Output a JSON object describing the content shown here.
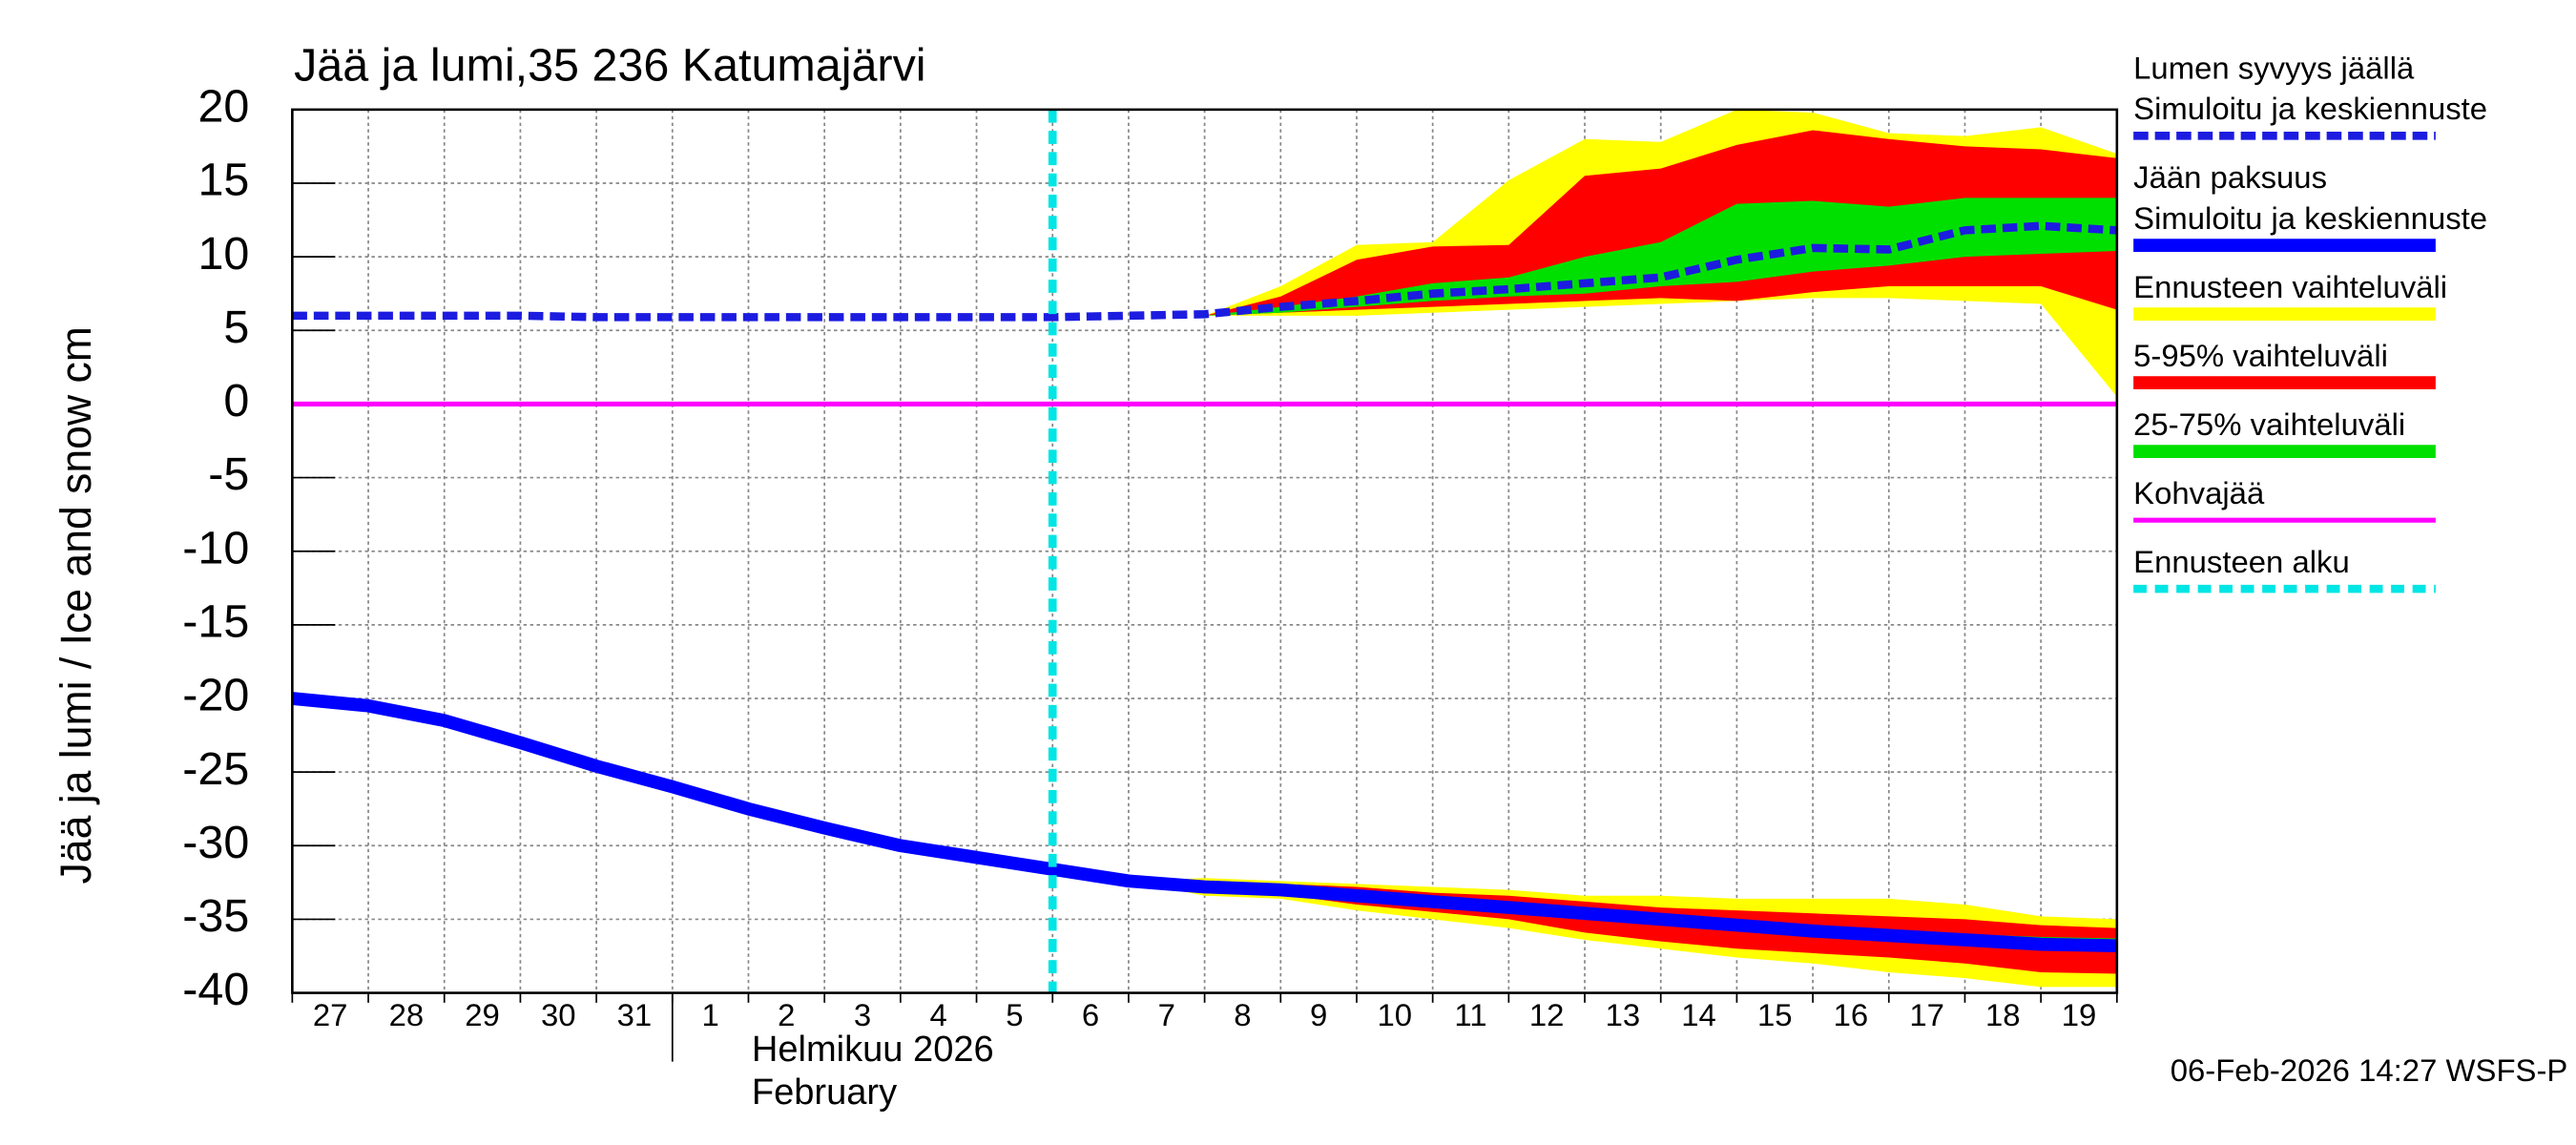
{
  "chart_data": {
    "type": "band-line",
    "title": "Jää ja lumi,35 236 Katumajärvi",
    "y_label": "Jää ja lumi / Ice and snow    cm",
    "timestamp": "06-Feb-2026 14:27 WSFS-P",
    "month_label": [
      "Helmikuu  2026",
      "February"
    ],
    "month_start": 5,
    "xlim": [
      0,
      24
    ],
    "xticks": [
      0,
      1,
      2,
      3,
      4,
      5,
      6,
      7,
      8,
      9,
      10,
      11,
      12,
      13,
      14,
      15,
      16,
      17,
      18,
      19,
      20,
      21,
      22,
      23,
      24
    ],
    "x_tick_labels": [
      "27",
      "28",
      "29",
      "30",
      "31",
      "1",
      "2",
      "3",
      "4",
      "5",
      "6",
      "7",
      "8",
      "9",
      "10",
      "11",
      "12",
      "13",
      "14",
      "15",
      "16",
      "17",
      "18",
      "19"
    ],
    "ylim": [
      -40,
      20
    ],
    "yticks": [
      20,
      15,
      10,
      5,
      0,
      -5,
      -10,
      -15,
      -20,
      -25,
      -30,
      -35,
      -40
    ],
    "grid": true,
    "series": [
      {
        "name": [
          "Lumen syvyys jäällä",
          "Simuloitu ja keskiennuste"
        ],
        "color": "#1c1ce0",
        "style": "dashed",
        "x": [
          0,
          1,
          2,
          3,
          4,
          5,
          6,
          7,
          8,
          9,
          10,
          11,
          12,
          13,
          14,
          15,
          16,
          17,
          18,
          19,
          20,
          21,
          22,
          23,
          24
        ],
        "values": [
          6,
          6,
          6,
          6,
          5.9,
          5.9,
          5.9,
          5.9,
          5.9,
          5.9,
          5.9,
          6,
          6.1,
          6.6,
          7,
          7.5,
          7.8,
          8.2,
          8.6,
          9.8,
          10.6,
          10.5,
          11.8,
          12.1,
          11.8
        ]
      },
      {
        "name": [
          "Jään paksuus",
          "Simuloitu ja keskiennuste"
        ],
        "color": "#0000ff",
        "style": "solid",
        "x": [
          0,
          1,
          2,
          3,
          4,
          5,
          6,
          7,
          8,
          9,
          10,
          11,
          12,
          13,
          14,
          15,
          16,
          17,
          18,
          19,
          20,
          21,
          22,
          23,
          24
        ],
        "values": [
          -20,
          -20.5,
          -21.5,
          -23,
          -24.6,
          -26,
          -27.5,
          -28.8,
          -30,
          -30.8,
          -31.6,
          -32.4,
          -32.8,
          -33,
          -33.4,
          -33.8,
          -34.2,
          -34.6,
          -35,
          -35.4,
          -35.8,
          -36.1,
          -36.4,
          -36.7,
          -36.8
        ]
      },
      {
        "name": "Ennusteen vaihteluväli",
        "color": "#ffff00",
        "style": "band",
        "bands": [
          {
            "x": [
              12,
              13,
              14,
              15,
              16,
              17,
              18,
              19,
              20,
              21,
              22,
              23,
              24
            ],
            "lower": [
              6,
              6,
              6,
              6.2,
              6.4,
              6.6,
              6.8,
              7,
              7.2,
              7.2,
              7,
              6.8,
              0.5
            ],
            "upper": [
              6,
              8,
              10.8,
              11,
              15.2,
              18,
              17.8,
              20,
              19.8,
              18.4,
              18.2,
              18.8,
              17
            ]
          },
          {
            "x": [
              11,
              12,
              13,
              14,
              15,
              16,
              17,
              18,
              19,
              20,
              21,
              22,
              23,
              24
            ],
            "lower": [
              -32.4,
              -33.4,
              -33.6,
              -34.4,
              -35,
              -35.6,
              -36.4,
              -37,
              -37.6,
              -38,
              -38.6,
              -39,
              -39.6,
              -39.6
            ],
            "upper": [
              -32.4,
              -32.2,
              -32.4,
              -32.6,
              -32.8,
              -33,
              -33.4,
              -33.4,
              -33.6,
              -33.6,
              -33.6,
              -34,
              -34.8,
              -35
            ]
          }
        ]
      },
      {
        "name": "5-95% vaihteluväli",
        "color": "#ff0000",
        "style": "band",
        "bands": [
          {
            "x": [
              12,
              13,
              14,
              15,
              16,
              17,
              18,
              19,
              20,
              21,
              22,
              23,
              24
            ],
            "lower": [
              6,
              6.2,
              6.4,
              6.6,
              6.8,
              7,
              7.2,
              7,
              7.6,
              8,
              8,
              8,
              6.4
            ],
            "upper": [
              6,
              7.3,
              9.8,
              10.7,
              10.8,
              15.5,
              16,
              17.6,
              18.6,
              18,
              17.5,
              17.3,
              16.7
            ]
          },
          {
            "x": [
              11,
              12,
              13,
              14,
              15,
              16,
              17,
              18,
              19,
              20,
              21,
              22,
              23,
              24
            ],
            "lower": [
              -32.4,
              -33.2,
              -33.3,
              -34,
              -34.5,
              -35,
              -35.9,
              -36.5,
              -37,
              -37.3,
              -37.6,
              -38,
              -38.6,
              -38.7
            ],
            "upper": [
              -32.4,
              -32.4,
              -32.6,
              -32.8,
              -33.2,
              -33.4,
              -33.8,
              -34.2,
              -34.4,
              -34.6,
              -34.8,
              -35,
              -35.4,
              -35.6
            ]
          }
        ]
      },
      {
        "name": "25-75% vaihteluväli",
        "color": "#00e000",
        "style": "band",
        "bands": [
          {
            "x": [
              12,
              13,
              14,
              15,
              16,
              17,
              18,
              19,
              20,
              21,
              22,
              23,
              24
            ],
            "lower": [
              6,
              6.2,
              6.6,
              7,
              7.3,
              7.5,
              8,
              8.3,
              9,
              9.4,
              10,
              10.2,
              10.4
            ],
            "upper": [
              6,
              6.6,
              7.3,
              8.2,
              8.6,
              10,
              11,
              13.6,
              13.8,
              13.4,
              14,
              14,
              14
            ]
          },
          {
            "x": [
              11,
              12,
              13,
              14,
              15,
              16,
              17,
              18,
              19,
              20,
              21,
              22,
              23,
              24
            ],
            "lower": [
              -32.4,
              -32.9,
              -33.1,
              -33.6,
              -34.1,
              -34.5,
              -35,
              -35.4,
              -35.8,
              -36.2,
              -36.5,
              -36.8,
              -37.1,
              -37.2
            ],
            "upper": [
              -32.4,
              -32.6,
              -32.8,
              -33.2,
              -33.6,
              -34,
              -34.5,
              -34.8,
              -35.1,
              -35.4,
              -35.7,
              -36,
              -36.2,
              -36.3
            ]
          }
        ]
      },
      {
        "name": "Kohvajää",
        "color": "#ff00ff",
        "style": "hline",
        "value": 0
      },
      {
        "name": "Ennusteen alku",
        "color": "#00e5e5",
        "style": "vline",
        "x": 10
      }
    ]
  }
}
